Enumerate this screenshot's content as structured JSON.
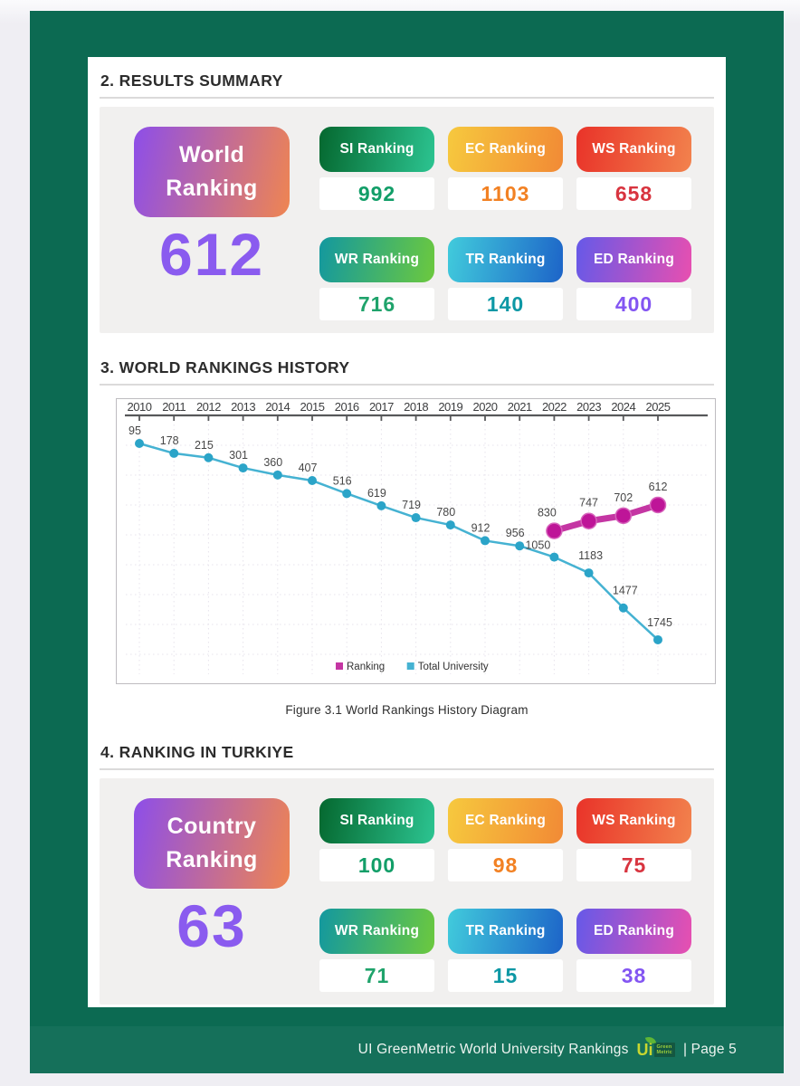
{
  "colors": {
    "page_green": "#0C6A52",
    "footer_green": "#15705A",
    "accent_purple": "#8A5BEF",
    "panel_gray": "#F1F0EF"
  },
  "sections": {
    "results_summary": {
      "heading": "2. RESULTS SUMMARY",
      "main_card": {
        "line1": "World",
        "line2": "Ranking",
        "value": "612",
        "gradient_from": "#8D4EE9",
        "gradient_to": "#EF8551",
        "value_color": "#8A5BEF"
      },
      "cards": [
        {
          "label": "SI Ranking",
          "value": "992",
          "gradient_from": "#05682F",
          "gradient_to": "#2CC491",
          "value_color": "#129E68"
        },
        {
          "label": "EC Ranking",
          "value": "1103",
          "gradient_from": "#F6C93E",
          "gradient_to": "#F28A35",
          "value_color": "#F28123"
        },
        {
          "label": "WS Ranking",
          "value": "658",
          "gradient_from": "#E93329",
          "gradient_to": "#F2824D",
          "value_color": "#D8343F"
        },
        {
          "label": "WR Ranking",
          "value": "716",
          "gradient_from": "#13989F",
          "gradient_to": "#6CC93E",
          "value_color": "#1FA36B"
        },
        {
          "label": "TR Ranking",
          "value": "140",
          "gradient_from": "#41CBDC",
          "gradient_to": "#1D64C8",
          "value_color": "#0D98A5"
        },
        {
          "label": "ED Ranking",
          "value": "400",
          "gradient_from": "#6659E8",
          "gradient_to": "#E84FB0",
          "value_color": "#8355F2"
        }
      ]
    },
    "history": {
      "heading": "3. WORLD RANKINGS HISTORY",
      "caption": "Figure 3.1 World Rankings History Diagram",
      "chart_data": {
        "type": "line",
        "title": "World Rankings History",
        "x": [
          2010,
          2011,
          2012,
          2013,
          2014,
          2015,
          2016,
          2017,
          2018,
          2019,
          2020,
          2021,
          2022,
          2023,
          2024,
          2025
        ],
        "x_axis_position": "top",
        "y_inverted": true,
        "grid": true,
        "legend_position": "bottom-center",
        "series": [
          {
            "name": "Ranking",
            "color": "#C436A3",
            "dot_color": "#BE1598",
            "x": [
              2022,
              2023,
              2024,
              2025
            ],
            "values": [
              830,
              747,
              702,
              612
            ]
          },
          {
            "name": "Total University",
            "color": "#45B2D2",
            "dot_color": "#2BA4C8",
            "x": [
              2010,
              2011,
              2012,
              2013,
              2014,
              2015,
              2016,
              2017,
              2018,
              2019,
              2020,
              2021,
              2022,
              2023,
              2024,
              2025
            ],
            "values": [
              95,
              178,
              215,
              301,
              360,
              407,
              516,
              619,
              719,
              780,
              912,
              956,
              1050,
              1183,
              1477,
              1745
            ]
          }
        ]
      }
    },
    "turkiye": {
      "heading": "4. RANKING IN TURKIYE",
      "main_card": {
        "line1": "Country",
        "line2": "Ranking",
        "value": "63",
        "gradient_from": "#8D4EE9",
        "gradient_to": "#EF8551",
        "value_color": "#8A5BEF"
      },
      "cards": [
        {
          "label": "SI Ranking",
          "value": "100",
          "gradient_from": "#05682F",
          "gradient_to": "#2CC491",
          "value_color": "#129E68"
        },
        {
          "label": "EC Ranking",
          "value": "98",
          "gradient_from": "#F6C93E",
          "gradient_to": "#F28A35",
          "value_color": "#F28123"
        },
        {
          "label": "WS Ranking",
          "value": "75",
          "gradient_from": "#E93329",
          "gradient_to": "#F2824D",
          "value_color": "#D8343F"
        },
        {
          "label": "WR Ranking",
          "value": "71",
          "gradient_from": "#13989F",
          "gradient_to": "#6CC93E",
          "value_color": "#1FA36B"
        },
        {
          "label": "TR Ranking",
          "value": "15",
          "gradient_from": "#41CBDC",
          "gradient_to": "#1D64C8",
          "value_color": "#0D98A5"
        },
        {
          "label": "ED Ranking",
          "value": "38",
          "gradient_from": "#6659E8",
          "gradient_to": "#E84FB0",
          "value_color": "#8355F2"
        }
      ]
    }
  },
  "footer": {
    "text": "UI GreenMetric World University Rankings",
    "page_label": "| Page 5",
    "logo": {
      "ui_text": "Ui",
      "line1": "Green",
      "line2": "Metric"
    }
  }
}
